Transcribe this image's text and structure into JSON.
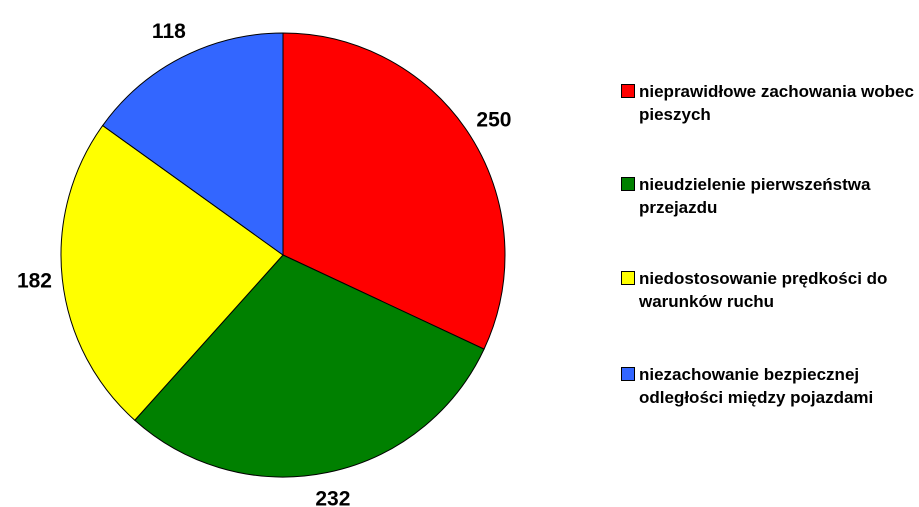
{
  "chart_data": {
    "type": "pie",
    "categories": [
      "nieprawidłowe zachowania wobec pieszych",
      "nieudzielenie pierwszeństwa przejazdu",
      "niedostosowanie prędkości do warunków ruchu",
      "niezachowanie bezpiecznej odległości między pojazdami"
    ],
    "values": [
      250,
      232,
      182,
      118
    ],
    "colors": [
      "#ff0000",
      "#008000",
      "#ffff00",
      "#3366ff"
    ],
    "legend": "right"
  }
}
